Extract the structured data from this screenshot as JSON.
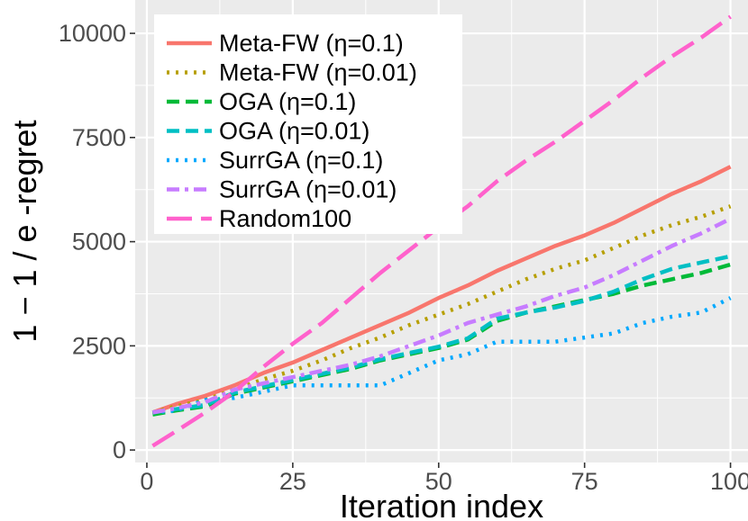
{
  "chart_data": {
    "type": "line",
    "title": "",
    "xlabel": "Iteration index",
    "ylabel": "1 − 1 / e -regret",
    "xlim": [
      -2,
      103
    ],
    "ylim": [
      -300,
      10800
    ],
    "x_ticks": [
      0,
      25,
      50,
      75,
      100
    ],
    "y_ticks": [
      0,
      2500,
      5000,
      7500,
      10000
    ],
    "grid": true,
    "legend_position": "top-left",
    "series": [
      {
        "name": "Meta-FW (η=0.1)",
        "color": "#F8766D",
        "dash": "solid",
        "x": [
          1,
          5,
          10,
          15,
          20,
          25,
          30,
          35,
          40,
          45,
          50,
          55,
          60,
          65,
          70,
          75,
          80,
          85,
          90,
          95,
          100
        ],
        "y": [
          900,
          1100,
          1300,
          1550,
          1850,
          2100,
          2400,
          2700,
          3000,
          3300,
          3650,
          3950,
          4300,
          4600,
          4900,
          5150,
          5450,
          5800,
          6150,
          6450,
          6800
        ]
      },
      {
        "name": "Meta-FW (η=0.01)",
        "color": "#B79F00",
        "dash": "dotted",
        "x": [
          1,
          5,
          10,
          15,
          20,
          25,
          30,
          35,
          40,
          45,
          50,
          55,
          60,
          65,
          70,
          75,
          80,
          85,
          90,
          95,
          100
        ],
        "y": [
          900,
          1050,
          1200,
          1450,
          1700,
          1900,
          2150,
          2450,
          2700,
          3000,
          3250,
          3500,
          3800,
          4100,
          4350,
          4550,
          4850,
          5150,
          5400,
          5600,
          5850
        ]
      },
      {
        "name": "OGA (η=0.1)",
        "color": "#00BA38",
        "dash": "dashed",
        "x": [
          1,
          5,
          10,
          15,
          20,
          25,
          30,
          35,
          40,
          45,
          50,
          55,
          60,
          65,
          70,
          75,
          80,
          85,
          90,
          95,
          100
        ],
        "y": [
          850,
          950,
          1050,
          1350,
          1500,
          1650,
          1800,
          1950,
          2150,
          2300,
          2450,
          2650,
          3100,
          3300,
          3450,
          3600,
          3750,
          3950,
          4100,
          4250,
          4450
        ]
      },
      {
        "name": "OGA (η=0.01)",
        "color": "#00BFC4",
        "dash": "dashed",
        "x": [
          1,
          5,
          10,
          15,
          20,
          25,
          30,
          35,
          40,
          45,
          50,
          55,
          60,
          65,
          70,
          75,
          80,
          85,
          90,
          95,
          100
        ],
        "y": [
          900,
          980,
          1080,
          1380,
          1530,
          1680,
          1830,
          1980,
          2180,
          2330,
          2480,
          2680,
          3150,
          3300,
          3420,
          3580,
          3800,
          4100,
          4350,
          4500,
          4650
        ]
      },
      {
        "name": "SurrGA (η=0.1)",
        "color": "#00A9FF",
        "dash": "dotted",
        "x": [
          1,
          5,
          10,
          15,
          20,
          25,
          30,
          35,
          40,
          45,
          50,
          55,
          60,
          65,
          70,
          75,
          80,
          85,
          90,
          95,
          100
        ],
        "y": [
          900,
          950,
          1200,
          1250,
          1400,
          1550,
          1550,
          1550,
          1550,
          1850,
          2150,
          2300,
          2600,
          2600,
          2600,
          2700,
          2800,
          3050,
          3200,
          3300,
          3650
        ]
      },
      {
        "name": "SurrGA (η=0.01)",
        "color": "#C77CFF",
        "dash": "dashdot",
        "x": [
          1,
          5,
          10,
          15,
          20,
          25,
          30,
          35,
          40,
          45,
          50,
          55,
          60,
          65,
          70,
          75,
          80,
          85,
          90,
          95,
          100
        ],
        "y": [
          900,
          1000,
          1150,
          1450,
          1600,
          1750,
          1900,
          2050,
          2250,
          2500,
          2750,
          3050,
          3250,
          3450,
          3700,
          3900,
          4200,
          4550,
          4900,
          5200,
          5550
        ]
      },
      {
        "name": "Random100",
        "color": "#FF61CC",
        "dash": "longdash",
        "x": [
          1,
          5,
          10,
          15,
          20,
          25,
          30,
          35,
          40,
          45,
          50,
          55,
          60,
          65,
          70,
          75,
          80,
          85,
          90,
          95,
          100
        ],
        "y": [
          100,
          450,
          900,
          1400,
          2000,
          2550,
          3050,
          3650,
          4250,
          4800,
          5350,
          5850,
          6450,
          6950,
          7400,
          7900,
          8400,
          8950,
          9450,
          9900,
          10400
        ]
      }
    ]
  }
}
